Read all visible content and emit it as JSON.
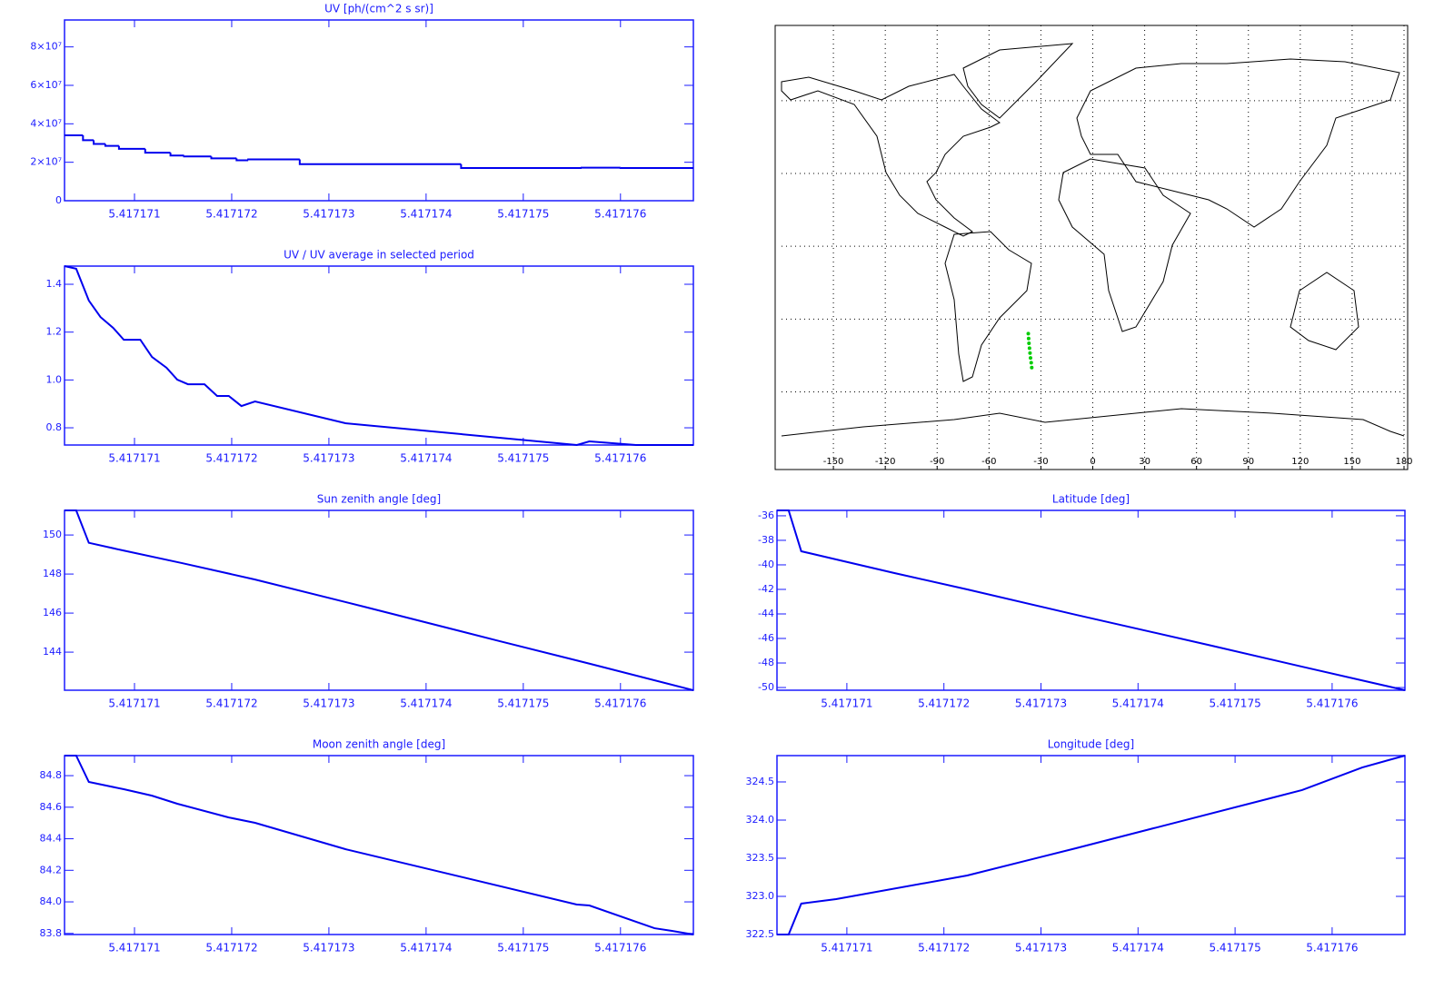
{
  "chart_data": [
    {
      "type": "line",
      "title": "UV [ph/(cm^2 s sr)]",
      "step": true,
      "color": "#0000ee",
      "x": [
        5.41717028,
        5.41717047,
        5.41717058,
        5.4171707,
        5.41717084,
        5.41717111,
        5.41717137,
        5.41717151,
        5.41717179,
        5.41717205,
        5.41717217,
        5.4171727,
        5.41717436,
        5.4171756,
        5.417176
      ],
      "values": [
        34000000,
        31500000,
        29500000,
        28500000,
        27000000,
        25000000,
        23500000,
        23000000,
        22000000,
        21000000,
        21500000,
        19000000,
        17000000,
        17200000,
        17000000
      ],
      "xlim": [
        5.41717028,
        5.41717675
      ],
      "ylim": [
        0,
        94000000
      ],
      "xticks": [
        5.417171,
        5.417172,
        5.417173,
        5.417174,
        5.417175,
        5.417176
      ],
      "yticks": [
        0,
        {
          "value": 20000000,
          "label": "2×10⁷"
        },
        {
          "value": 40000000,
          "label": "4×10⁷"
        },
        {
          "value": 60000000,
          "label": "6×10⁷"
        },
        {
          "value": 80000000,
          "label": "8×10⁷"
        }
      ]
    },
    {
      "type": "line",
      "title": "UV / UV average in selected period",
      "color": "#0000ee",
      "x": [
        5.41717028,
        5.4171704,
        5.41717053,
        5.41717065,
        5.41717078,
        5.41717089,
        5.41717106,
        5.41717118,
        5.41717133,
        5.41717144,
        5.41717155,
        5.41717172,
        5.41717185,
        5.41717197,
        5.4171721,
        5.41717224,
        5.41717317,
        5.41717555,
        5.41717568,
        5.41717616,
        5.41717675
      ],
      "values": [
        1.476,
        1.465,
        1.332,
        1.263,
        1.218,
        1.168,
        1.168,
        1.096,
        1.051,
        1.001,
        0.982,
        0.982,
        0.933,
        0.933,
        0.891,
        0.91,
        0.819,
        0.728,
        0.743,
        0.728,
        0.728
      ],
      "xlim": [
        5.41717028,
        5.41717675
      ],
      "ylim": [
        0.728,
        1.476
      ],
      "xticks": [
        5.417171,
        5.417172,
        5.417173,
        5.417174,
        5.417175,
        5.417176
      ],
      "yticks": [
        0.8,
        {
          "value": 1,
          "label": "1.0"
        },
        1.2,
        1.4
      ]
    },
    {
      "type": "map",
      "color": "#00cc00",
      "x": [
        -37.3,
        -37.1,
        -36.9,
        -36.6,
        -36.3,
        -36.0,
        -35.6,
        -35.3
      ],
      "values": [
        -36,
        -38,
        -40,
        -42,
        -44,
        -46,
        -48,
        -50
      ],
      "xlim": [
        -180,
        180
      ],
      "ylim": [
        -92,
        91
      ],
      "xticks": [
        -150,
        -120,
        -90,
        -60,
        -30,
        0,
        30,
        60,
        90,
        120,
        150,
        180
      ],
      "yticks": [
        -60,
        -30,
        0,
        30,
        60
      ]
    },
    {
      "type": "line",
      "title": "Sun zenith angle [deg]",
      "color": "#0000ee",
      "x": [
        5.41717028,
        5.4171704,
        5.41717053,
        5.41717089,
        5.41717149,
        5.41717224,
        5.41717336,
        5.41717476,
        5.41717569,
        5.41717675
      ],
      "values": [
        151.26,
        151.26,
        149.6,
        149.2,
        148.56,
        147.72,
        146.33,
        144.56,
        143.4,
        142.05
      ],
      "xlim": [
        5.41717028,
        5.41717675
      ],
      "ylim": [
        142.05,
        151.26
      ],
      "xticks": [
        5.417171,
        5.417172,
        5.417173,
        5.417174,
        5.417175,
        5.417176
      ],
      "yticks": [
        144,
        146,
        148,
        150
      ]
    },
    {
      "type": "line",
      "title": "Latitude [deg]",
      "color": "#0000ee",
      "x": [
        5.41717028,
        5.4171704,
        5.41717053,
        5.41717089,
        5.41717149,
        5.41717224,
        5.41717336,
        5.41717476,
        5.41717569,
        5.41717675
      ],
      "values": [
        -35.56,
        -35.56,
        -38.89,
        -39.56,
        -40.67,
        -42.0,
        -44.07,
        -46.59,
        -48.3,
        -50.22
      ],
      "xlim": [
        5.41717028,
        5.41717675
      ],
      "ylim": [
        -50.22,
        -35.56
      ],
      "xticks": [
        5.417171,
        5.417172,
        5.417173,
        5.417174,
        5.417175,
        5.417176
      ],
      "yticks": [
        -50,
        -48,
        -46,
        -44,
        -42,
        -40,
        -38,
        -36
      ]
    },
    {
      "type": "line",
      "title": "Moon zenith angle [deg]",
      "color": "#0000ee",
      "x": [
        5.41717028,
        5.4171704,
        5.41717053,
        5.41717089,
        5.41717118,
        5.41717144,
        5.41717197,
        5.41717224,
        5.41717317,
        5.41717555,
        5.41717568,
        5.41717635,
        5.41717653,
        5.41717675
      ],
      "values": [
        84.927,
        84.927,
        84.76,
        84.714,
        84.673,
        84.622,
        84.535,
        84.501,
        84.334,
        83.983,
        83.977,
        83.833,
        83.816,
        83.793
      ],
      "xlim": [
        5.41717028,
        5.41717675
      ],
      "ylim": [
        83.793,
        84.927
      ],
      "xticks": [
        5.417171,
        5.417172,
        5.417173,
        5.417174,
        5.417175,
        5.417176
      ],
      "yticks": [
        83.8,
        {
          "value": 84,
          "label": "84.0"
        },
        84.2,
        84.4,
        84.6,
        84.8
      ]
    },
    {
      "type": "line",
      "title": "Longitude [deg]",
      "color": "#0000ee",
      "x": [
        5.41717028,
        5.4171704,
        5.41717053,
        5.41717089,
        5.41717224,
        5.41717336,
        5.41717569,
        5.41717631,
        5.41717675
      ],
      "values": [
        322.5,
        322.5,
        322.905,
        322.964,
        323.274,
        323.631,
        324.393,
        324.69,
        324.845
      ],
      "xlim": [
        5.41717028,
        5.41717675
      ],
      "ylim": [
        322.5,
        324.845
      ],
      "xticks": [
        5.417171,
        5.417172,
        5.417173,
        5.417174,
        5.417175,
        5.417176
      ],
      "yticks": [
        322.5,
        {
          "value": 323,
          "label": "323.0"
        },
        323.5,
        {
          "value": 324,
          "label": "324.0"
        },
        324.5
      ]
    }
  ]
}
